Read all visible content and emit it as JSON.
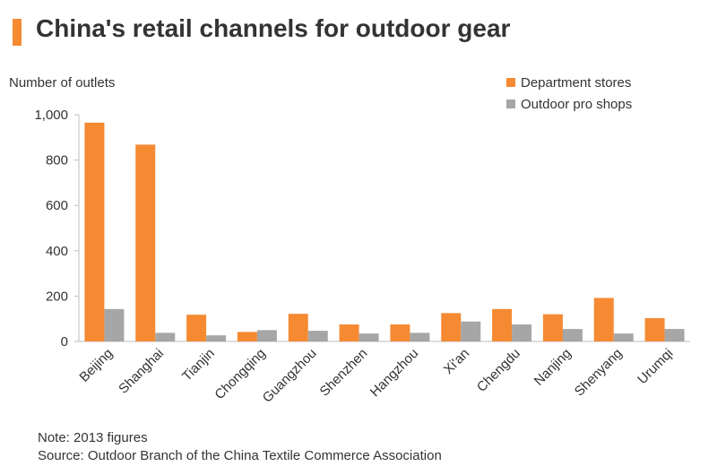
{
  "title": "China's retail channels for outdoor gear",
  "note": "Note: 2013 figures",
  "source": "Source: Outdoor Branch of the China Textile Commerce Association",
  "colors": {
    "accent": "#f58a33",
    "secondary": "#a6a6a6",
    "axis": "#bfbfbf"
  },
  "chart_data": {
    "type": "bar",
    "title": "",
    "xlabel": "",
    "ylabel": "Number of outlets",
    "ylim": [
      0,
      1000
    ],
    "yticks": [
      "0",
      "200",
      "400",
      "600",
      "800",
      "1,000"
    ],
    "yticks_values": [
      0,
      200,
      400,
      600,
      800,
      1000
    ],
    "grid": false,
    "legend_position": "top-right",
    "categories": [
      "Beijing",
      "Shanghai",
      "Tianjin",
      "Chongqing",
      "Guangzhou",
      "Shenzhen",
      "Hangzhou",
      "Xi'an",
      "Chengdu",
      "Nanjing",
      "Shenyang",
      "Urumqi"
    ],
    "series": [
      {
        "name": "Department stores",
        "color": "#f58a33",
        "values": [
          965,
          868,
          118,
          42,
          122,
          75,
          75,
          125,
          143,
          120,
          192,
          103
        ]
      },
      {
        "name": "Outdoor pro shops",
        "color": "#a6a6a6",
        "values": [
          143,
          38,
          27,
          50,
          47,
          35,
          38,
          88,
          75,
          55,
          35,
          55
        ]
      }
    ]
  }
}
